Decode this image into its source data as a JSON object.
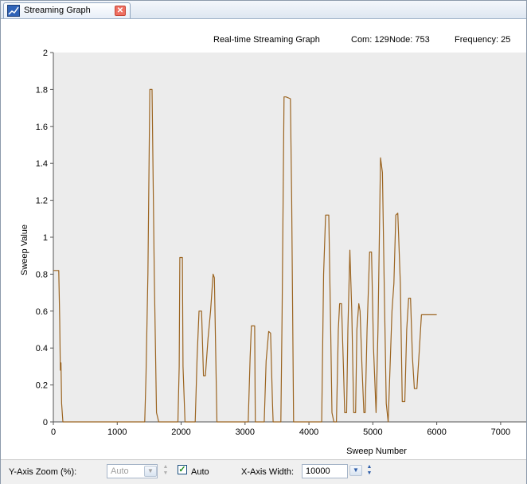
{
  "tab": {
    "label": "Streaming Graph",
    "icon": "graph-tab-icon",
    "close_icon": "close-icon"
  },
  "info": {
    "title": "Real-time Streaming Graph",
    "com": "Com: 129",
    "node": "Node: 753",
    "frequency": "Frequency: 25"
  },
  "controls": {
    "y_zoom_label": "Y-Axis Zoom (%):",
    "y_zoom_value": "Auto",
    "auto_label": "Auto",
    "auto_checked": true,
    "x_width_label": "X-Axis Width:",
    "x_width_value": "10000"
  },
  "colors": {
    "line": "#9b6420",
    "plot_bg": "#ececec",
    "accent": "#3a6fbf"
  },
  "chart_data": {
    "type": "line",
    "xlabel": "Sweep Number",
    "ylabel": "Sweep Value",
    "xlim": [
      0,
      7400
    ],
    "ylim": [
      0,
      2
    ],
    "xticks": [
      "0",
      "1000",
      "2000",
      "3000",
      "4000",
      "5000",
      "6000",
      "7000"
    ],
    "yticks": [
      "0",
      "0.2",
      "0.4",
      "0.6",
      "0.8",
      "1",
      "1.2",
      "1.4",
      "1.6",
      "1.8",
      "2"
    ],
    "grid": false,
    "series": [
      {
        "x": [
          0,
          60,
          85,
          100,
          110,
          120,
          130,
          150,
          1430,
          1450,
          1480,
          1510,
          1545,
          1580,
          1615,
          1650,
          1950,
          1970,
          1980,
          2020,
          2030,
          2060,
          2070,
          2220,
          2250,
          2280,
          2320,
          2350,
          2380,
          2420,
          2460,
          2500,
          2520,
          2560,
          3050,
          3080,
          3100,
          3150,
          3160,
          3300,
          3330,
          3370,
          3400,
          3430,
          3440,
          3560,
          3580,
          3610,
          3640,
          3710,
          3730,
          3760,
          3790,
          4200,
          4230,
          4260,
          4310,
          4340,
          4360,
          4390,
          4430,
          4460,
          4480,
          4510,
          4540,
          4560,
          4590,
          4610,
          4640,
          4670,
          4700,
          4730,
          4750,
          4780,
          4800,
          4830,
          4860,
          4880,
          4910,
          4950,
          4980,
          5010,
          5050,
          5080,
          5120,
          5150,
          5180,
          5210,
          5240,
          5270,
          5300,
          5330,
          5360,
          5390,
          5430,
          5460,
          5500,
          5530,
          5560,
          5590,
          5620,
          5650,
          5690,
          5730,
          5760,
          5800,
          5830,
          5860,
          5890,
          5920,
          5960,
          6000
        ],
        "y": [
          0.82,
          0.82,
          0.82,
          0.55,
          0.28,
          0.32,
          0.1,
          0.0,
          0.0,
          0.25,
          0.8,
          1.8,
          1.8,
          0.8,
          0.05,
          0.0,
          0.0,
          0.3,
          0.89,
          0.89,
          0.3,
          0.0,
          0.0,
          0.0,
          0.35,
          0.6,
          0.6,
          0.25,
          0.25,
          0.45,
          0.6,
          0.8,
          0.78,
          0.0,
          0.0,
          0.35,
          0.52,
          0.52,
          0.0,
          0.0,
          0.33,
          0.49,
          0.48,
          0.1,
          0.0,
          0.0,
          0.6,
          1.76,
          1.76,
          1.75,
          1.2,
          0.0,
          0.0,
          0.0,
          0.8,
          1.12,
          1.12,
          0.5,
          0.05,
          0.0,
          0.0,
          0.5,
          0.64,
          0.64,
          0.3,
          0.05,
          0.05,
          0.5,
          0.93,
          0.6,
          0.05,
          0.05,
          0.5,
          0.64,
          0.6,
          0.3,
          0.05,
          0.05,
          0.5,
          0.92,
          0.92,
          0.4,
          0.05,
          0.5,
          1.43,
          1.35,
          0.7,
          0.1,
          0.0,
          0.3,
          0.6,
          0.75,
          1.12,
          1.13,
          0.75,
          0.11,
          0.11,
          0.5,
          0.67,
          0.67,
          0.35,
          0.18,
          0.18,
          0.4,
          0.58,
          0.58,
          0.58,
          0.58,
          0.58,
          0.58,
          0.58,
          0.58
        ]
      }
    ]
  }
}
